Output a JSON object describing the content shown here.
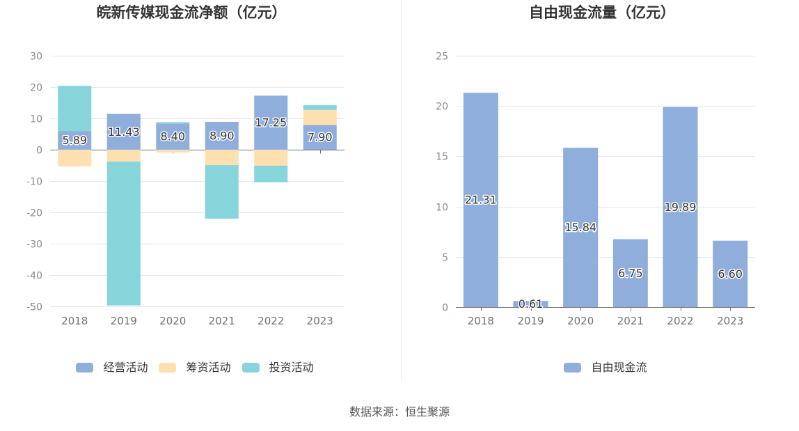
{
  "source_note": "数据来源：恒生聚源",
  "chart_data": [
    {
      "type": "bar",
      "stacked": true,
      "title": "皖新传媒现金流净额（亿元）",
      "categories": [
        "2018",
        "2019",
        "2020",
        "2021",
        "2022",
        "2023"
      ],
      "series": [
        {
          "name": "经营活动",
          "color": "#8faedb",
          "values": [
            5.89,
            11.43,
            8.4,
            8.9,
            17.25,
            7.9
          ],
          "show_labels": true
        },
        {
          "name": "筹资活动",
          "color": "#fedfaf",
          "values": [
            -5.3,
            -3.8,
            -0.9,
            -4.9,
            -5.1,
            4.8
          ],
          "show_labels": false
        },
        {
          "name": "投资活动",
          "color": "#87d5da",
          "values": [
            14.5,
            -45.9,
            0.4,
            -17.1,
            -5.3,
            1.5
          ],
          "show_labels": false
        }
      ],
      "ylim": [
        -50,
        30
      ],
      "yticks": [
        30,
        20,
        10,
        0,
        -10,
        -20,
        -30,
        -40,
        -50
      ],
      "grid": true,
      "legend": "bottom-center"
    },
    {
      "type": "bar",
      "stacked": false,
      "title": "自由现金流量（亿元）",
      "categories": [
        "2018",
        "2019",
        "2020",
        "2021",
        "2022",
        "2023"
      ],
      "series": [
        {
          "name": "自由现金流",
          "color": "#8faedb",
          "values": [
            21.31,
            0.61,
            15.84,
            6.75,
            19.89,
            6.6
          ],
          "show_labels": true
        }
      ],
      "ylim": [
        0,
        25
      ],
      "yticks": [
        25,
        20,
        15,
        10,
        5,
        0
      ],
      "grid": true,
      "legend": "bottom-center"
    }
  ]
}
